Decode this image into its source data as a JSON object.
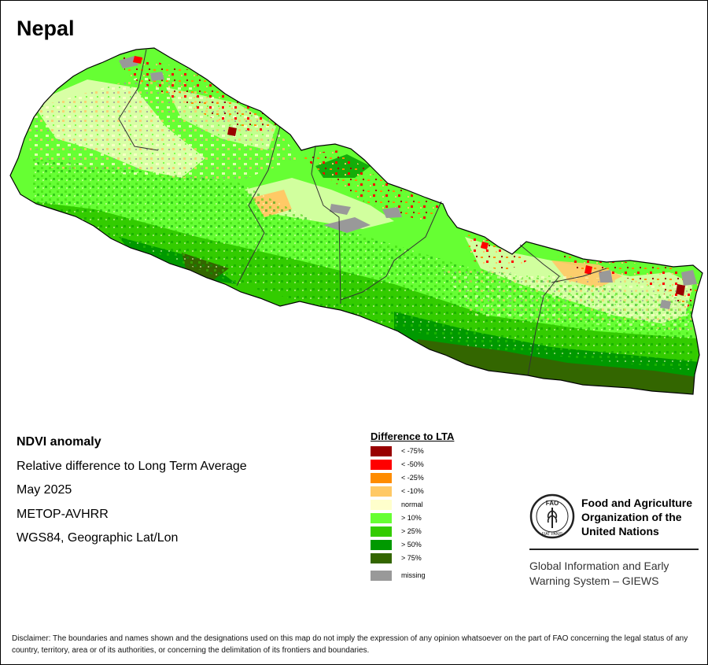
{
  "map": {
    "title": "Nepal"
  },
  "info": {
    "lines": [
      "NDVI anomaly",
      "Relative difference to Long Term Average",
      "May 2025",
      "METOP-AVHRR",
      "WGS84, Geographic Lat/Lon"
    ]
  },
  "legend": {
    "title": "Difference to LTA",
    "items": [
      {
        "label": "< -75%",
        "color": "#990000"
      },
      {
        "label": "< -50%",
        "color": "#ff0000"
      },
      {
        "label": "< -25%",
        "color": "#ff8c00"
      },
      {
        "label": "< -10%",
        "color": "#ffc966"
      },
      {
        "label": "normal",
        "color": "#ffffcc"
      },
      {
        "label": "> 10%",
        "color": "#66ff33"
      },
      {
        "label": "> 25%",
        "color": "#33cc00"
      },
      {
        "label": "> 50%",
        "color": "#009900"
      },
      {
        "label": "> 75%",
        "color": "#336600"
      }
    ],
    "missing": {
      "label": "missing",
      "color": "#999999"
    }
  },
  "fao": {
    "emblem_letters": "FAO",
    "motto": "FIAT PANIS",
    "name_lines": [
      "Food and Agriculture",
      "Organization of the",
      "United Nations"
    ],
    "giews_lines": [
      "Global Information and Early",
      "Warning System – GIEWS"
    ]
  },
  "disclaimer": "Disclaimer: The boundaries and names shown and the designations used on this map do not imply the expression of any opinion whatsoever on the part of FAO concerning the legal status of any country, territory, area or of its authorities, or concerning the delimitation of its frontiers and boundaries."
}
